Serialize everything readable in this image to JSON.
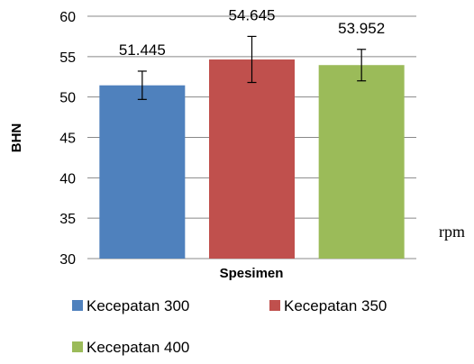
{
  "chart_data": {
    "type": "bar",
    "categories": [
      "Kecepatan 300",
      "Kecepatan 350",
      "Kecepatan 400"
    ],
    "values": [
      51.445,
      54.645,
      53.952
    ],
    "value_labels": [
      "51.445",
      "54.645",
      "53.952"
    ],
    "error_bars": [
      {
        "low": 49.7,
        "high": 53.2
      },
      {
        "low": 51.8,
        "high": 57.5
      },
      {
        "low": 52.0,
        "high": 55.9
      }
    ],
    "colors": [
      "#4f81bd",
      "#c0504d",
      "#9bbb59"
    ],
    "title": "",
    "xlabel": "Spesimen",
    "ylabel": "BHN",
    "unit_note": "rpm",
    "ylim": [
      30,
      60
    ],
    "yticks": [
      30,
      35,
      40,
      45,
      50,
      55,
      60
    ],
    "grid": true,
    "legend": {
      "position": "bottom",
      "entries": [
        "Kecepatan 300",
        "Kecepatan 350",
        "Kecepatan 400"
      ]
    }
  }
}
